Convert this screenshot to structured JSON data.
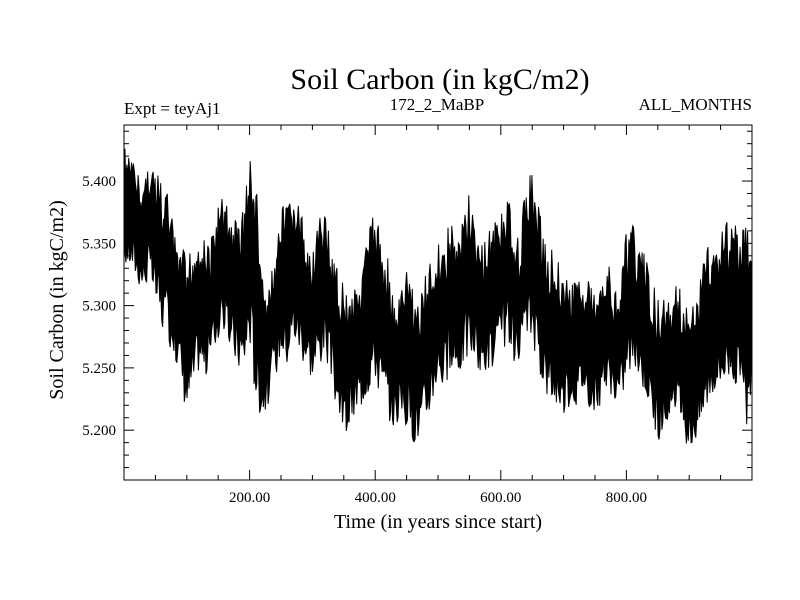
{
  "chart_data": {
    "type": "line",
    "title": "Soil Carbon (in kgC/m2)",
    "subtitle_left": "Expt = teyAj1",
    "subtitle_center": "172_2_MaBP",
    "subtitle_right": "ALL_MONTHS",
    "xlabel": "Time (in years since start)",
    "ylabel": "Soil Carbon (in kgC/m2)",
    "xlim": [
      0,
      1000
    ],
    "ylim": [
      5.16,
      5.445
    ],
    "x_ticks": [
      {
        "value": 200,
        "label": "200.00"
      },
      {
        "value": 400,
        "label": "400.00"
      },
      {
        "value": 600,
        "label": "600.00"
      },
      {
        "value": 800,
        "label": "800.00"
      }
    ],
    "y_ticks": [
      {
        "value": 5.2,
        "label": "5.200"
      },
      {
        "value": 5.25,
        "label": "5.250"
      },
      {
        "value": 5.3,
        "label": "5.300"
      },
      {
        "value": 5.35,
        "label": "5.350"
      },
      {
        "value": 5.4,
        "label": "5.400"
      }
    ],
    "series": [
      {
        "name": "Soil Carbon",
        "color": "#000000",
        "envelope": {
          "x": [
            0,
            10,
            20,
            30,
            40,
            50,
            60,
            70,
            80,
            90,
            100,
            110,
            120,
            130,
            140,
            150,
            160,
            170,
            180,
            190,
            200,
            210,
            220,
            230,
            240,
            250,
            260,
            270,
            280,
            290,
            300,
            310,
            320,
            330,
            340,
            350,
            360,
            370,
            380,
            390,
            400,
            410,
            420,
            430,
            440,
            450,
            460,
            470,
            480,
            490,
            500,
            510,
            520,
            530,
            540,
            550,
            560,
            570,
            580,
            590,
            600,
            610,
            620,
            630,
            640,
            650,
            660,
            670,
            680,
            690,
            700,
            710,
            720,
            730,
            740,
            750,
            760,
            770,
            780,
            790,
            800,
            810,
            820,
            830,
            840,
            850,
            860,
            870,
            880,
            890,
            900,
            910,
            920,
            930,
            940,
            950,
            960,
            970,
            980,
            990,
            1000
          ],
          "high": [
            5.43,
            5.42,
            5.41,
            5.4,
            5.42,
            5.41,
            5.4,
            5.39,
            5.36,
            5.35,
            5.34,
            5.35,
            5.36,
            5.35,
            5.36,
            5.38,
            5.39,
            5.37,
            5.37,
            5.38,
            5.42,
            5.4,
            5.33,
            5.31,
            5.35,
            5.38,
            5.38,
            5.39,
            5.38,
            5.36,
            5.35,
            5.37,
            5.38,
            5.35,
            5.33,
            5.32,
            5.31,
            5.33,
            5.34,
            5.36,
            5.38,
            5.35,
            5.34,
            5.3,
            5.31,
            5.33,
            5.32,
            5.3,
            5.33,
            5.34,
            5.35,
            5.36,
            5.37,
            5.35,
            5.38,
            5.39,
            5.36,
            5.35,
            5.36,
            5.37,
            5.38,
            5.39,
            5.37,
            5.36,
            5.4,
            5.41,
            5.38,
            5.36,
            5.35,
            5.34,
            5.33,
            5.32,
            5.32,
            5.33,
            5.32,
            5.31,
            5.33,
            5.34,
            5.31,
            5.32,
            5.36,
            5.37,
            5.35,
            5.34,
            5.32,
            5.31,
            5.31,
            5.3,
            5.32,
            5.31,
            5.29,
            5.31,
            5.33,
            5.35,
            5.35,
            5.36,
            5.37,
            5.38,
            5.35,
            5.37,
            5.35
          ],
          "low": [
            5.33,
            5.33,
            5.32,
            5.31,
            5.32,
            5.3,
            5.28,
            5.27,
            5.26,
            5.24,
            5.21,
            5.23,
            5.25,
            5.24,
            5.26,
            5.27,
            5.28,
            5.26,
            5.25,
            5.24,
            5.27,
            5.22,
            5.21,
            5.22,
            5.24,
            5.26,
            5.25,
            5.27,
            5.26,
            5.25,
            5.24,
            5.25,
            5.26,
            5.24,
            5.21,
            5.19,
            5.2,
            5.21,
            5.22,
            5.23,
            5.24,
            5.22,
            5.21,
            5.2,
            5.21,
            5.2,
            5.19,
            5.19,
            5.2,
            5.22,
            5.24,
            5.23,
            5.24,
            5.24,
            5.25,
            5.26,
            5.25,
            5.24,
            5.25,
            5.24,
            5.26,
            5.27,
            5.25,
            5.24,
            5.27,
            5.27,
            5.25,
            5.23,
            5.22,
            5.22,
            5.21,
            5.22,
            5.22,
            5.23,
            5.22,
            5.21,
            5.22,
            5.23,
            5.22,
            5.22,
            5.24,
            5.25,
            5.24,
            5.23,
            5.21,
            5.19,
            5.2,
            5.2,
            5.21,
            5.2,
            5.18,
            5.19,
            5.2,
            5.22,
            5.23,
            5.23,
            5.24,
            5.24,
            5.22,
            5.2,
            5.21
          ]
        }
      }
    ]
  }
}
